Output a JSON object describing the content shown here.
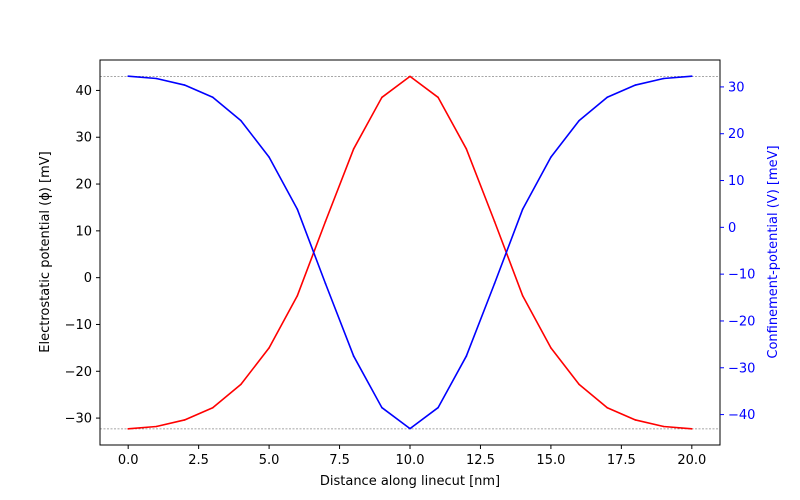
{
  "chart_data": {
    "type": "line",
    "title": "",
    "xlabel": "Distance along linecut [nm]",
    "ylabel_left": "Electrostatic potential (ϕ) [mV]",
    "ylabel_right": "Confinement-potential (V) [meV]",
    "xlim": [
      -1.0,
      21.0
    ],
    "ylim_left": [
      -35.75,
      46.5
    ],
    "ylim_right": [
      -46.5,
      35.75
    ],
    "xticks": [
      "0.0",
      "2.5",
      "5.0",
      "7.5",
      "10.0",
      "12.5",
      "15.0",
      "17.5",
      "20.0"
    ],
    "yticks_left": [
      "−30",
      "−20",
      "−10",
      "0",
      "10",
      "20",
      "30",
      "40"
    ],
    "yticks_right": [
      "−40",
      "−30",
      "−20",
      "−10",
      "0",
      "10",
      "20",
      "30"
    ],
    "reference_lines_left": [
      43.0,
      -32.3
    ],
    "grid": false,
    "colors": {
      "electrostatic": "#ff0000",
      "confinement": "#0000ff",
      "right_axis": "#0000ff",
      "reference_line": "#888888"
    },
    "series": [
      {
        "axis": "left",
        "x": [
          0.0,
          1.0,
          2.0,
          3.0,
          4.0,
          5.0,
          6.0,
          7.0,
          8.0,
          9.0,
          10.0,
          11.0,
          12.0,
          13.0,
          14.0,
          15.0,
          16.0,
          17.0,
          18.0,
          19.0,
          20.0
        ],
        "values": [
          -32.3,
          -31.8,
          -30.4,
          -27.8,
          -22.8,
          -15.0,
          -3.9,
          12.0,
          27.5,
          38.5,
          43.0,
          38.5,
          27.5,
          12.0,
          -3.9,
          -15.0,
          -22.8,
          -27.8,
          -30.4,
          -31.8,
          -32.3
        ]
      },
      {
        "axis": "right",
        "x": [
          0.0,
          1.0,
          2.0,
          3.0,
          4.0,
          5.0,
          6.0,
          7.0,
          8.0,
          9.0,
          10.0,
          11.0,
          12.0,
          13.0,
          14.0,
          15.0,
          16.0,
          17.0,
          18.0,
          19.0,
          20.0
        ],
        "values": [
          32.3,
          31.8,
          30.4,
          27.8,
          22.8,
          15.0,
          3.9,
          -12.0,
          -27.5,
          -38.5,
          -43.0,
          -38.5,
          -27.5,
          -12.0,
          3.9,
          15.0,
          22.8,
          27.8,
          30.4,
          31.8,
          32.3
        ]
      }
    ]
  }
}
